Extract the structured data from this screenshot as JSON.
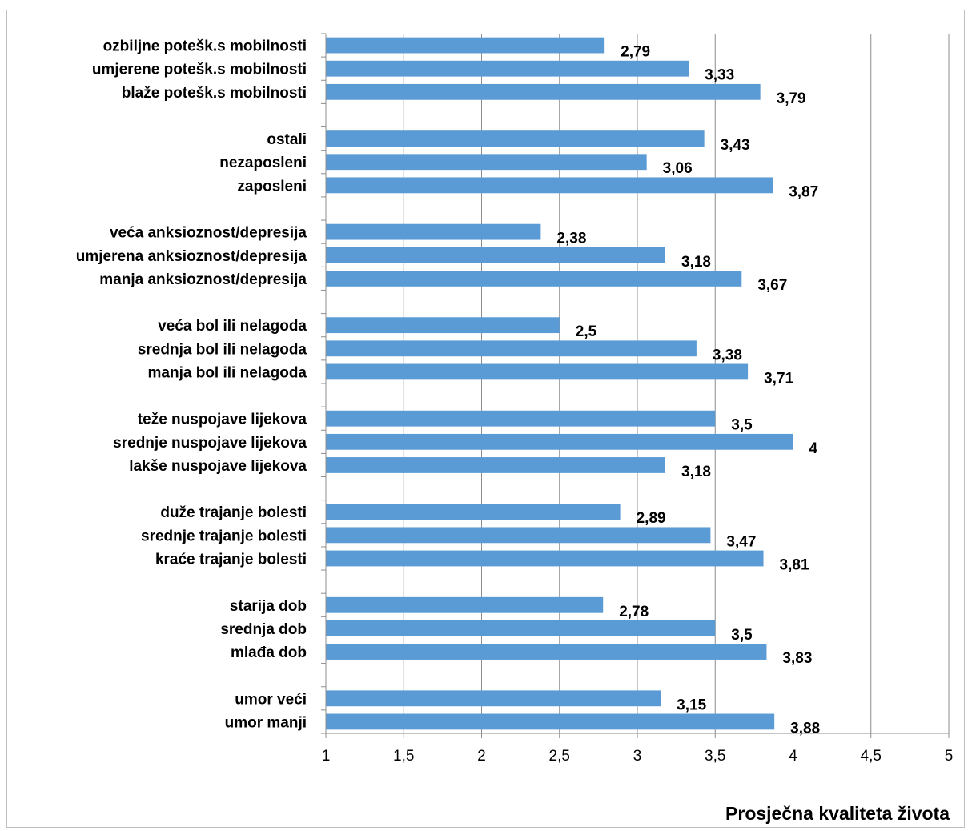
{
  "chart_data": {
    "type": "bar",
    "orientation": "horizontal",
    "xlabel": "Prosječna kvaliteta života",
    "xlim": [
      1,
      5
    ],
    "xticks": [
      1,
      1.5,
      2,
      2.5,
      3,
      3.5,
      4,
      4.5,
      5
    ],
    "xtick_labels": [
      "1",
      "1,5",
      "2",
      "2,5",
      "3",
      "3,5",
      "4",
      "4,5",
      "5"
    ],
    "grid": "vertical",
    "bar_color": "#5b9bd5",
    "groups": [
      {
        "items": [
          {
            "label": "ozbiljne potešk.s mobilnosti",
            "value": 2.79,
            "value_label": "2,79"
          },
          {
            "label": "umjerene potešk.s mobilnosti",
            "value": 3.33,
            "value_label": "3,33"
          },
          {
            "label": "blaže potešk.s mobilnosti",
            "value": 3.79,
            "value_label": "3,79"
          }
        ]
      },
      {
        "items": [
          {
            "label": "ostali",
            "value": 3.43,
            "value_label": "3,43"
          },
          {
            "label": "nezaposleni",
            "value": 3.06,
            "value_label": "3,06"
          },
          {
            "label": "zaposleni",
            "value": 3.87,
            "value_label": "3,87"
          }
        ]
      },
      {
        "items": [
          {
            "label": "veća anksioznost/depresija",
            "value": 2.38,
            "value_label": "2,38"
          },
          {
            "label": "umjerena anksioznost/depresija",
            "value": 3.18,
            "value_label": "3,18"
          },
          {
            "label": "manja anksioznost/depresija",
            "value": 3.67,
            "value_label": "3,67"
          }
        ]
      },
      {
        "items": [
          {
            "label": "veća bol ili nelagoda",
            "value": 2.5,
            "value_label": "2,5"
          },
          {
            "label": "srednja bol ili nelagoda",
            "value": 3.38,
            "value_label": "3,38"
          },
          {
            "label": "manja bol ili nelagoda",
            "value": 3.71,
            "value_label": "3,71"
          }
        ]
      },
      {
        "items": [
          {
            "label": "teže nuspojave lijekova",
            "value": 3.5,
            "value_label": "3,5"
          },
          {
            "label": "srednje nuspojave lijekova",
            "value": 4,
            "value_label": "4"
          },
          {
            "label": "lakše nuspojave lijekova",
            "value": 3.18,
            "value_label": "3,18"
          }
        ]
      },
      {
        "items": [
          {
            "label": "duže trajanje bolesti",
            "value": 2.89,
            "value_label": "2,89"
          },
          {
            "label": "srednje trajanje bolesti",
            "value": 3.47,
            "value_label": "3,47"
          },
          {
            "label": "kraće trajanje bolesti",
            "value": 3.81,
            "value_label": "3,81"
          }
        ]
      },
      {
        "items": [
          {
            "label": "starija dob",
            "value": 2.78,
            "value_label": "2,78"
          },
          {
            "label": "srednja dob",
            "value": 3.5,
            "value_label": "3,5"
          },
          {
            "label": "mlađa dob",
            "value": 3.83,
            "value_label": "3,83"
          }
        ]
      },
      {
        "items": [
          {
            "label": "umor veći",
            "value": 3.15,
            "value_label": "3,15"
          },
          {
            "label": "umor manji",
            "value": 3.88,
            "value_label": "3,88"
          }
        ]
      }
    ]
  }
}
